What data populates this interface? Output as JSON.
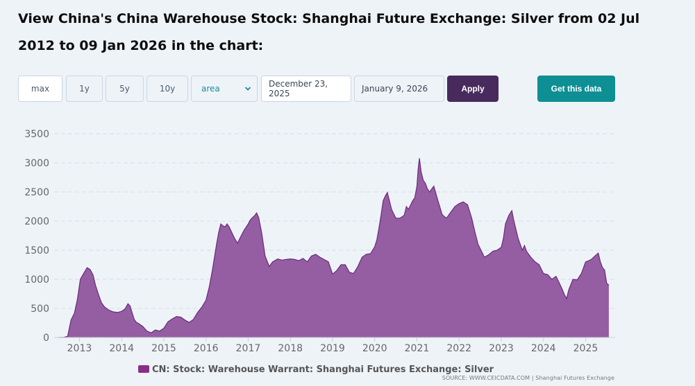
{
  "header": {
    "title": "View China's China Warehouse Stock: Shanghai Future Exchange: Silver from 02 Jul 2012 to 09 Jan 2026 in the chart:"
  },
  "controls": {
    "range_buttons": [
      "max",
      "1y",
      "5y",
      "10y"
    ],
    "active_range": "max",
    "chart_type": "area",
    "start_date": "December 23, 2025",
    "end_date": "January 9, 2026",
    "apply_label": "Apply",
    "get_data_label": "Get this data"
  },
  "source": "SOURCE: WWW.CEICDATA.COM | Shanghai Futures Exchange",
  "colors": {
    "area_fill": "#8b4c98",
    "area_stroke": "#6a2b7a",
    "legend_swatch": "#8a2f88",
    "grid": "#d6dde6",
    "axis_text": "#666666"
  },
  "chart_data": {
    "type": "area",
    "title": "",
    "xlabel": "",
    "ylabel": "",
    "ylim": [
      0,
      3500
    ],
    "xlim": [
      2012.4,
      2025.7
    ],
    "yticks": [
      0,
      500,
      1000,
      1500,
      2000,
      2500,
      3000,
      3500
    ],
    "xtick_labels": [
      "2013",
      "2014",
      "2015",
      "2016",
      "2017",
      "2018",
      "2019",
      "2020",
      "2021",
      "2022",
      "2023",
      "2024",
      "2025"
    ],
    "xtick_values": [
      2013,
      2014,
      2015,
      2016,
      2017,
      2018,
      2019,
      2020,
      2021,
      2022,
      2023,
      2024,
      2025
    ],
    "grid": true,
    "legend": "bottom-center",
    "series": [
      {
        "name": "CN: Stock: Warehouse Warrant: Shanghai Futures Exchange: Silver",
        "x": [
          2012.5,
          2012.62,
          2012.72,
          2012.8,
          2012.88,
          2012.95,
          2013.02,
          2013.1,
          2013.18,
          2013.25,
          2013.32,
          2013.38,
          2013.45,
          2013.52,
          2013.6,
          2013.7,
          2013.8,
          2013.9,
          2014.0,
          2014.08,
          2014.15,
          2014.2,
          2014.25,
          2014.3,
          2014.35,
          2014.4,
          2014.5,
          2014.6,
          2014.7,
          2014.8,
          2014.9,
          2015.0,
          2015.1,
          2015.2,
          2015.3,
          2015.4,
          2015.5,
          2015.6,
          2015.7,
          2015.8,
          2015.9,
          2016.0,
          2016.08,
          2016.15,
          2016.2,
          2016.25,
          2016.3,
          2016.35,
          2016.4,
          2016.45,
          2016.5,
          2016.55,
          2016.6,
          2016.68,
          2016.75,
          2016.8,
          2016.9,
          2017.0,
          2017.05,
          2017.1,
          2017.15,
          2017.2,
          2017.25,
          2017.32,
          2017.4,
          2017.5,
          2017.58,
          2017.7,
          2017.8,
          2017.9,
          2018.0,
          2018.1,
          2018.2,
          2018.3,
          2018.4,
          2018.5,
          2018.6,
          2018.7,
          2018.8,
          2018.9,
          2019.0,
          2019.1,
          2019.2,
          2019.3,
          2019.4,
          2019.5,
          2019.6,
          2019.7,
          2019.8,
          2019.9,
          2020.0,
          2020.05,
          2020.1,
          2020.15,
          2020.2,
          2020.25,
          2020.3,
          2020.4,
          2020.5,
          2020.6,
          2020.7,
          2020.75,
          2020.8,
          2020.9,
          2020.95,
          2021.0,
          2021.03,
          2021.06,
          2021.1,
          2021.15,
          2021.2,
          2021.25,
          2021.3,
          2021.4,
          2021.5,
          2021.6,
          2021.7,
          2021.8,
          2021.9,
          2022.0,
          2022.1,
          2022.2,
          2022.3,
          2022.38,
          2022.45,
          2022.52,
          2022.6,
          2022.7,
          2022.8,
          2022.9,
          2023.0,
          2023.05,
          2023.1,
          2023.18,
          2023.25,
          2023.3,
          2023.4,
          2023.5,
          2023.55,
          2023.6,
          2023.7,
          2023.8,
          2023.9,
          2024.0,
          2024.1,
          2024.2,
          2024.3,
          2024.4,
          2024.45,
          2024.5,
          2024.55,
          2024.6,
          2024.7,
          2024.8,
          2024.9,
          2025.0,
          2025.08,
          2025.15,
          2025.22,
          2025.3,
          2025.35,
          2025.4,
          2025.45,
          2025.5,
          2025.55
        ],
        "values": [
          0,
          0,
          20,
          300,
          420,
          650,
          1000,
          1100,
          1200,
          1170,
          1080,
          900,
          740,
          600,
          520,
          470,
          440,
          430,
          450,
          490,
          580,
          540,
          420,
          310,
          260,
          240,
          190,
          110,
          80,
          130,
          110,
          160,
          270,
          320,
          360,
          350,
          300,
          260,
          310,
          430,
          520,
          640,
          880,
          1150,
          1380,
          1600,
          1800,
          1950,
          1920,
          1900,
          1950,
          1900,
          1820,
          1700,
          1620,
          1700,
          1840,
          1950,
          2020,
          2060,
          2090,
          2140,
          2060,
          1800,
          1400,
          1220,
          1300,
          1350,
          1330,
          1340,
          1350,
          1340,
          1320,
          1360,
          1300,
          1400,
          1430,
          1380,
          1340,
          1300,
          1090,
          1150,
          1250,
          1250,
          1120,
          1100,
          1220,
          1380,
          1430,
          1440,
          1560,
          1680,
          1880,
          2100,
          2350,
          2430,
          2490,
          2200,
          2050,
          2050,
          2100,
          2250,
          2200,
          2350,
          2400,
          2600,
          2900,
          3080,
          2850,
          2700,
          2650,
          2550,
          2500,
          2600,
          2350,
          2110,
          2050,
          2150,
          2250,
          2300,
          2330,
          2280,
          2050,
          1800,
          1600,
          1500,
          1380,
          1420,
          1480,
          1500,
          1550,
          1700,
          1950,
          2100,
          2180,
          2000,
          1700,
          1500,
          1580,
          1480,
          1380,
          1300,
          1250,
          1100,
          1080,
          1000,
          1050,
          900,
          820,
          730,
          670,
          820,
          1000,
          990,
          1100,
          1300,
          1320,
          1350,
          1400,
          1450,
          1300,
          1200,
          1160,
          930,
          900
        ]
      }
    ]
  }
}
